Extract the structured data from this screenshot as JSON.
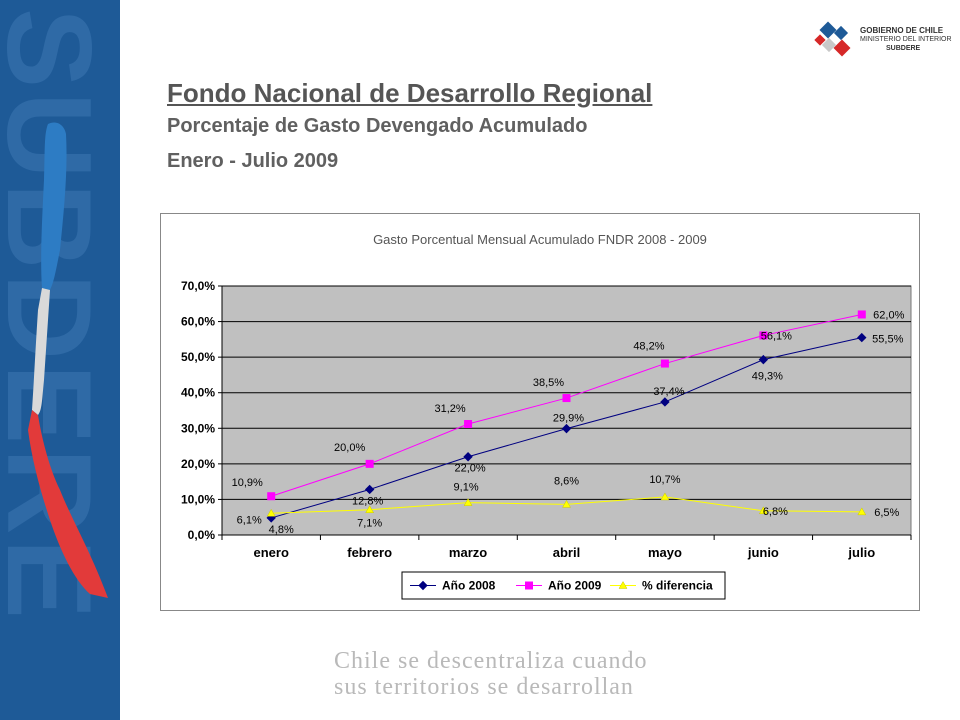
{
  "side": {
    "word": "SUBDERE"
  },
  "logo": {
    "line1": "GOBIERNO DE CHILE",
    "line2": "MINISTERIO DEL INTERIOR",
    "line3": "SUBDERE"
  },
  "header": {
    "title": "Fondo Nacional de Desarrollo Regional",
    "subtitle1": "Porcentaje de Gasto Devengado Acumulado",
    "subtitle2": "Enero - Julio 2009"
  },
  "footer": {
    "line1": "Chile se descentraliza cuando",
    "line2": "sus territorios se desarrollan"
  },
  "colors": {
    "series_2008": "#000080",
    "series_2009": "#ff00ff",
    "series_diff": "#ffff00",
    "plot_bg": "#c0c0c0",
    "band": "#1e5a97"
  },
  "chart_data": {
    "type": "line",
    "title": "Gasto Porcentual Mensual Acumulado FNDR 2008 - 2009",
    "categories": [
      "enero",
      "febrero",
      "marzo",
      "abril",
      "mayo",
      "junio",
      "julio"
    ],
    "ylim": [
      0,
      70
    ],
    "yticks": [
      0,
      10,
      20,
      30,
      40,
      50,
      60,
      70
    ],
    "ytick_labels": [
      "0,0%",
      "10,0%",
      "20,0%",
      "30,0%",
      "40,0%",
      "50,0%",
      "60,0%",
      "70,0%"
    ],
    "grid": true,
    "legend_position": "bottom",
    "series": [
      {
        "name": "Año 2008",
        "marker": "diamond",
        "values": [
          4.8,
          12.8,
          22.0,
          29.9,
          37.4,
          49.3,
          55.5
        ],
        "labels": [
          "4,8%",
          "12,8%",
          "22,0%",
          "29,9%",
          "37,4%",
          "49,3%",
          "55,5%"
        ]
      },
      {
        "name": "Año 2009",
        "marker": "square",
        "values": [
          10.9,
          20.0,
          31.2,
          38.5,
          48.2,
          56.1,
          62.0
        ],
        "labels": [
          "10,9%",
          "20,0%",
          "31,2%",
          "38,5%",
          "48,2%",
          "56,1%",
          "62,0%"
        ]
      },
      {
        "name": "% diferencia",
        "marker": "triangle",
        "values": [
          6.1,
          7.1,
          9.1,
          8.6,
          10.7,
          6.8,
          6.5
        ],
        "labels": [
          "6,1%",
          "7,1%",
          "9,1%",
          "8,6%",
          "10,7%",
          "6,8%",
          "6,5%"
        ]
      }
    ]
  }
}
